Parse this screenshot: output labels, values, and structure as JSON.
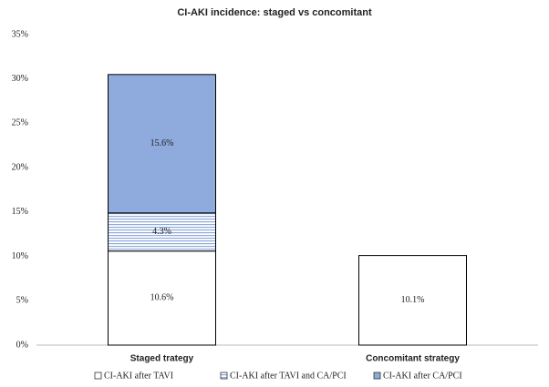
{
  "chart_data": {
    "type": "stacked-bar",
    "title": "CI-AKI incidence: staged vs concomitant",
    "categories": [
      "Staged trategy",
      "Concomitant strategy"
    ],
    "series": [
      {
        "name": "CI-AKI after TAVI",
        "color": "#ffffff",
        "values": [
          10.6,
          10.1
        ],
        "value_labels": [
          "10.6%",
          "10.1%"
        ]
      },
      {
        "name": "CI-AKI after TAVI and CA/PCI",
        "color": "#8faadc",
        "pattern": "horizontal-lines",
        "values": [
          4.3,
          null
        ],
        "value_labels": [
          "4.3%",
          null
        ]
      },
      {
        "name": "CI-AKI after CA/PCI",
        "color": "#8faadc",
        "values": [
          15.6,
          null
        ],
        "value_labels": [
          "15.6%",
          null
        ]
      }
    ],
    "ylim": [
      0,
      35
    ],
    "yticks": [
      {
        "value": 0,
        "label": "0%"
      },
      {
        "value": 5,
        "label": "5%"
      },
      {
        "value": 10,
        "label": "10%"
      },
      {
        "value": 15,
        "label": "15%"
      },
      {
        "value": 20,
        "label": "20%"
      },
      {
        "value": 25,
        "label": "25%"
      },
      {
        "value": 30,
        "label": "30%"
      },
      {
        "value": 35,
        "label": "35%"
      }
    ],
    "grid": false,
    "legend": "bottom"
  }
}
